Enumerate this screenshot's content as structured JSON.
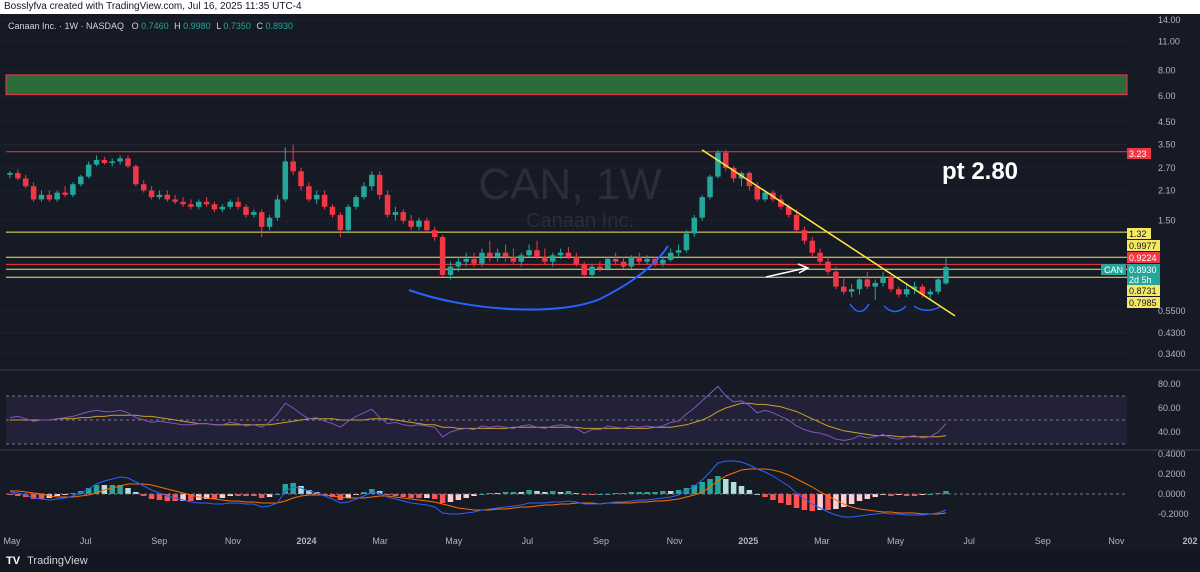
{
  "header": {
    "credit": "Bosslyfva created with TradingView.com, Jul 16, 2025 11:35 UTC-4"
  },
  "symbol_line": {
    "name": "Canaan Inc. · 1W · NASDAQ",
    "o_label": "O",
    "o": "0.7460",
    "h_label": "H",
    "h": "0.9980",
    "l_label": "L",
    "l": "0.7350",
    "c_label": "C",
    "c": "0.8930"
  },
  "watermark": {
    "ticker": "CAN, 1W",
    "company": "Canaan Inc."
  },
  "annotation": "pt 2.80",
  "price_badges": {
    "r323": "3.23",
    "r132": "1.32",
    "r09977": "0.9977",
    "r09224": "0.9224",
    "can_label": "CAN",
    "can_price": "0.8930",
    "can_time": "2d 5h",
    "r08731": "0.8731",
    "r07985": "0.7985"
  },
  "colors": {
    "background": "#161a25",
    "up": "#26a69a",
    "down": "#f23645",
    "zone_fill": "#2e6b3a",
    "zone_border": "#f23645",
    "hline_yellow": "#f5e663",
    "hline_red": "#f23645",
    "trendline": "#ffeb3b",
    "curve": "#2962ff",
    "rsi": "#7e57c2",
    "rsi_ma": "#c9a227",
    "macd": "#2962ff",
    "signal": "#ff6d00"
  },
  "footer": {
    "logo_text": "TV",
    "brand": "TradingView"
  },
  "chart_data": {
    "type": "candlestick",
    "interval": "1W",
    "price_scale": "log",
    "price_axis_ticks": [
      "14.00",
      "11.00",
      "8.00",
      "6.00",
      "4.50",
      "3.50",
      "2.70",
      "2.10",
      "1.50",
      "0.5500",
      "0.4300",
      "0.3400"
    ],
    "time_axis_labels": [
      "May",
      "Jul",
      "Sep",
      "Nov",
      "2024",
      "Mar",
      "May",
      "Jul",
      "Sep",
      "Nov",
      "2025",
      "Mar",
      "May",
      "Jul",
      "Sep",
      "Nov",
      "202"
    ],
    "levels": [
      {
        "price": 3.23,
        "color": "red"
      },
      {
        "price": 1.32,
        "color": "yellow"
      },
      {
        "price": 0.9977,
        "color": "yellow"
      },
      {
        "price": 0.9224,
        "color": "red"
      },
      {
        "price": 0.8731,
        "color": "yellow"
      },
      {
        "price": 0.7985,
        "color": "yellow"
      }
    ],
    "zone": {
      "low": 6.1,
      "high": 7.6
    },
    "trendline": {
      "from_price": 3.3,
      "to_price": 0.52
    },
    "candles_ohlc": [
      [
        2.5,
        2.6,
        2.4,
        2.55
      ],
      [
        2.55,
        2.65,
        2.35,
        2.4
      ],
      [
        2.4,
        2.5,
        2.15,
        2.2
      ],
      [
        2.2,
        2.3,
        1.85,
        1.9
      ],
      [
        1.9,
        2.1,
        1.85,
        2.0
      ],
      [
        2.0,
        2.1,
        1.85,
        1.9
      ],
      [
        1.9,
        2.1,
        1.85,
        2.05
      ],
      [
        2.05,
        2.2,
        1.95,
        2.0
      ],
      [
        2.0,
        2.3,
        1.95,
        2.25
      ],
      [
        2.25,
        2.5,
        2.2,
        2.45
      ],
      [
        2.45,
        2.9,
        2.4,
        2.8
      ],
      [
        2.8,
        3.1,
        2.75,
        2.95
      ],
      [
        2.95,
        3.05,
        2.8,
        2.85
      ],
      [
        2.85,
        3.0,
        2.75,
        2.9
      ],
      [
        2.9,
        3.1,
        2.8,
        3.0
      ],
      [
        3.0,
        3.1,
        2.7,
        2.75
      ],
      [
        2.75,
        2.8,
        2.2,
        2.25
      ],
      [
        2.25,
        2.35,
        2.05,
        2.1
      ],
      [
        2.1,
        2.2,
        1.9,
        1.95
      ],
      [
        1.95,
        2.1,
        1.9,
        2.0
      ],
      [
        2.0,
        2.1,
        1.85,
        1.9
      ],
      [
        1.9,
        2.0,
        1.8,
        1.85
      ],
      [
        1.85,
        1.95,
        1.75,
        1.8
      ],
      [
        1.8,
        1.9,
        1.7,
        1.75
      ],
      [
        1.75,
        1.9,
        1.7,
        1.85
      ],
      [
        1.85,
        1.95,
        1.75,
        1.8
      ],
      [
        1.8,
        1.85,
        1.65,
        1.7
      ],
      [
        1.7,
        1.8,
        1.65,
        1.75
      ],
      [
        1.75,
        1.9,
        1.7,
        1.85
      ],
      [
        1.85,
        1.95,
        1.7,
        1.75
      ],
      [
        1.75,
        1.8,
        1.55,
        1.6
      ],
      [
        1.6,
        1.7,
        1.55,
        1.65
      ],
      [
        1.65,
        1.7,
        1.25,
        1.4
      ],
      [
        1.4,
        1.6,
        1.35,
        1.55
      ],
      [
        1.55,
        2.0,
        1.5,
        1.9
      ],
      [
        1.9,
        3.4,
        1.85,
        2.9
      ],
      [
        2.9,
        3.5,
        2.5,
        2.6
      ],
      [
        2.6,
        2.7,
        2.1,
        2.2
      ],
      [
        2.2,
        2.3,
        1.85,
        1.9
      ],
      [
        1.9,
        2.1,
        1.8,
        2.0
      ],
      [
        2.0,
        2.1,
        1.7,
        1.75
      ],
      [
        1.75,
        1.8,
        1.55,
        1.6
      ],
      [
        1.6,
        1.65,
        1.25,
        1.35
      ],
      [
        1.35,
        1.8,
        1.3,
        1.75
      ],
      [
        1.75,
        2.0,
        1.7,
        1.95
      ],
      [
        1.95,
        2.3,
        1.9,
        2.2
      ],
      [
        2.2,
        2.6,
        2.1,
        2.5
      ],
      [
        2.5,
        2.6,
        1.9,
        2.0
      ],
      [
        2.0,
        2.1,
        1.55,
        1.6
      ],
      [
        1.6,
        1.75,
        1.5,
        1.65
      ],
      [
        1.65,
        1.7,
        1.45,
        1.5
      ],
      [
        1.5,
        1.6,
        1.35,
        1.4
      ],
      [
        1.4,
        1.55,
        1.35,
        1.5
      ],
      [
        1.5,
        1.55,
        1.3,
        1.35
      ],
      [
        1.35,
        1.4,
        1.2,
        1.25
      ],
      [
        1.25,
        1.28,
        0.8,
        0.82
      ],
      [
        0.82,
        0.95,
        0.78,
        0.9
      ],
      [
        0.9,
        1.0,
        0.85,
        0.95
      ],
      [
        0.95,
        1.05,
        0.9,
        0.98
      ],
      [
        0.98,
        1.05,
        0.9,
        0.93
      ],
      [
        0.93,
        1.1,
        0.9,
        1.05
      ],
      [
        1.05,
        1.2,
        0.95,
        1.0
      ],
      [
        1.0,
        1.1,
        0.95,
        1.05
      ],
      [
        1.05,
        1.15,
        0.95,
        1.0
      ],
      [
        1.0,
        1.1,
        0.92,
        0.95
      ],
      [
        0.95,
        1.05,
        0.9,
        1.02
      ],
      [
        1.02,
        1.15,
        1.0,
        1.08
      ],
      [
        1.08,
        1.2,
        0.98,
        1.0
      ],
      [
        1.0,
        1.1,
        0.92,
        0.95
      ],
      [
        0.95,
        1.05,
        0.9,
        1.02
      ],
      [
        1.02,
        1.1,
        0.98,
        1.05
      ],
      [
        1.05,
        1.12,
        0.98,
        1.0
      ],
      [
        1.0,
        1.05,
        0.9,
        0.92
      ],
      [
        0.92,
        0.95,
        0.8,
        0.82
      ],
      [
        0.82,
        0.92,
        0.8,
        0.9
      ],
      [
        0.9,
        0.95,
        0.85,
        0.88
      ],
      [
        0.88,
        1.0,
        0.86,
        0.98
      ],
      [
        0.98,
        1.05,
        0.92,
        0.95
      ],
      [
        0.95,
        1.0,
        0.88,
        0.9
      ],
      [
        0.9,
        1.02,
        0.88,
        1.0
      ],
      [
        1.0,
        1.05,
        0.92,
        0.95
      ],
      [
        0.95,
        1.02,
        0.92,
        0.98
      ],
      [
        0.98,
        1.0,
        0.9,
        0.93
      ],
      [
        0.93,
        1.0,
        0.9,
        0.97
      ],
      [
        0.97,
        1.1,
        0.95,
        1.05
      ],
      [
        1.05,
        1.15,
        1.0,
        1.08
      ],
      [
        1.08,
        1.35,
        1.05,
        1.3
      ],
      [
        1.3,
        1.6,
        1.25,
        1.55
      ],
      [
        1.55,
        2.0,
        1.5,
        1.95
      ],
      [
        1.95,
        2.5,
        1.9,
        2.45
      ],
      [
        2.45,
        3.3,
        2.4,
        3.2
      ],
      [
        3.2,
        3.3,
        2.6,
        2.7
      ],
      [
        2.7,
        2.75,
        2.3,
        2.4
      ],
      [
        2.4,
        2.6,
        2.2,
        2.55
      ],
      [
        2.55,
        2.6,
        2.1,
        2.2
      ],
      [
        2.2,
        2.3,
        1.85,
        1.9
      ],
      [
        1.9,
        2.1,
        1.85,
        2.05
      ],
      [
        2.05,
        2.1,
        1.85,
        1.9
      ],
      [
        1.9,
        2.0,
        1.7,
        1.75
      ],
      [
        1.75,
        1.8,
        1.55,
        1.6
      ],
      [
        1.6,
        1.7,
        1.3,
        1.35
      ],
      [
        1.35,
        1.4,
        1.15,
        1.2
      ],
      [
        1.2,
        1.25,
        1.0,
        1.05
      ],
      [
        1.05,
        1.1,
        0.92,
        0.95
      ],
      [
        0.95,
        1.0,
        0.82,
        0.85
      ],
      [
        0.85,
        0.9,
        0.7,
        0.72
      ],
      [
        0.72,
        0.8,
        0.66,
        0.68
      ],
      [
        0.68,
        0.74,
        0.64,
        0.7
      ],
      [
        0.7,
        0.8,
        0.66,
        0.78
      ],
      [
        0.78,
        0.85,
        0.7,
        0.72
      ],
      [
        0.72,
        0.78,
        0.62,
        0.75
      ],
      [
        0.75,
        0.85,
        0.72,
        0.8
      ],
      [
        0.8,
        0.82,
        0.68,
        0.7
      ],
      [
        0.7,
        0.72,
        0.64,
        0.66
      ],
      [
        0.66,
        0.75,
        0.64,
        0.7
      ],
      [
        0.7,
        0.76,
        0.66,
        0.72
      ],
      [
        0.72,
        0.74,
        0.64,
        0.66
      ],
      [
        0.66,
        0.7,
        0.63,
        0.68
      ],
      [
        0.68,
        0.8,
        0.66,
        0.78
      ],
      [
        0.746,
        0.998,
        0.735,
        0.893
      ]
    ],
    "rsi_axis_ticks": [
      "80.00",
      "60.00",
      "40.00"
    ],
    "rsi_values": [
      52,
      53,
      51,
      49,
      50,
      50,
      51,
      52,
      53,
      55,
      57,
      58,
      57,
      57,
      58,
      56,
      52,
      50,
      48,
      49,
      48,
      47,
      46,
      46,
      47,
      47,
      46,
      46,
      48,
      47,
      45,
      46,
      44,
      48,
      55,
      64,
      60,
      55,
      51,
      52,
      49,
      47,
      44,
      49,
      53,
      56,
      59,
      52,
      47,
      48,
      46,
      45,
      46,
      45,
      44,
      36,
      40,
      42,
      43,
      42,
      45,
      44,
      45,
      44,
      43,
      45,
      46,
      44,
      43,
      45,
      46,
      45,
      43,
      39,
      42,
      42,
      45,
      44,
      43,
      45,
      44,
      45,
      44,
      45,
      48,
      49,
      55,
      60,
      66,
      72,
      78,
      70,
      65,
      66,
      62,
      56,
      58,
      56,
      53,
      50,
      45,
      42,
      40,
      39,
      37,
      34,
      33,
      34,
      37,
      35,
      36,
      38,
      35,
      34,
      36,
      37,
      35,
      36,
      40,
      47
    ],
    "rsi_ma_values": [
      50,
      50,
      50,
      50,
      50,
      50,
      51,
      51,
      51,
      52,
      52,
      53,
      53,
      54,
      54,
      54,
      54,
      53,
      53,
      52,
      51,
      50,
      49,
      48,
      47,
      47,
      46,
      46,
      46,
      46,
      46,
      46,
      46,
      46,
      47,
      48,
      49,
      50,
      51,
      51,
      51,
      51,
      50,
      50,
      50,
      50,
      51,
      51,
      51,
      50,
      49,
      48,
      47,
      46,
      46,
      44,
      44,
      43,
      43,
      43,
      43,
      43,
      43,
      43,
      44,
      44,
      44,
      44,
      44,
      44,
      44,
      44,
      44,
      43,
      43,
      43,
      43,
      43,
      43,
      43,
      43,
      43,
      44,
      44,
      44,
      45,
      46,
      48,
      50,
      53,
      57,
      60,
      62,
      64,
      64,
      63,
      63,
      62,
      61,
      59,
      57,
      54,
      51,
      48,
      45,
      43,
      41,
      40,
      39,
      38,
      37,
      37,
      37,
      36,
      36,
      36,
      36,
      36,
      36,
      37
    ],
    "macd_axis_ticks": [
      "0.4000",
      "0.2000",
      "0.0000",
      "-0.2000"
    ],
    "macd_values": [
      0.02,
      0.01,
      -0.01,
      -0.04,
      -0.05,
      -0.06,
      -0.05,
      -0.04,
      -0.02,
      0.01,
      0.05,
      0.1,
      0.13,
      0.15,
      0.17,
      0.16,
      0.12,
      0.08,
      0.04,
      0.01,
      -0.02,
      -0.04,
      -0.06,
      -0.08,
      -0.09,
      -0.09,
      -0.1,
      -0.1,
      -0.09,
      -0.09,
      -0.1,
      -0.1,
      -0.13,
      -0.12,
      -0.09,
      0.03,
      0.07,
      0.06,
      0.03,
      0.01,
      -0.02,
      -0.05,
      -0.09,
      -0.08,
      -0.05,
      -0.02,
      0.02,
      0.01,
      -0.03,
      -0.05,
      -0.07,
      -0.09,
      -0.1,
      -0.11,
      -0.13,
      -0.19,
      -0.2,
      -0.2,
      -0.19,
      -0.18,
      -0.16,
      -0.15,
      -0.14,
      -0.13,
      -0.12,
      -0.11,
      -0.09,
      -0.09,
      -0.09,
      -0.08,
      -0.08,
      -0.07,
      -0.08,
      -0.1,
      -0.1,
      -0.1,
      -0.09,
      -0.08,
      -0.08,
      -0.07,
      -0.06,
      -0.06,
      -0.05,
      -0.04,
      -0.03,
      -0.01,
      0.03,
      0.08,
      0.14,
      0.22,
      0.31,
      0.33,
      0.33,
      0.32,
      0.29,
      0.25,
      0.22,
      0.18,
      0.13,
      0.08,
      0.01,
      -0.05,
      -0.1,
      -0.14,
      -0.18,
      -0.21,
      -0.23,
      -0.23,
      -0.22,
      -0.21,
      -0.2,
      -0.19,
      -0.2,
      -0.2,
      -0.21,
      -0.21,
      -0.21,
      -0.2,
      -0.19,
      -0.16
    ],
    "signal_values": [
      0.03,
      0.03,
      0.02,
      0.01,
      0.0,
      -0.02,
      -0.03,
      -0.03,
      -0.03,
      -0.02,
      -0.01,
      0.01,
      0.04,
      0.06,
      0.08,
      0.1,
      0.1,
      0.1,
      0.09,
      0.07,
      0.05,
      0.03,
      0.01,
      -0.01,
      -0.03,
      -0.04,
      -0.05,
      -0.06,
      -0.07,
      -0.07,
      -0.08,
      -0.08,
      -0.09,
      -0.09,
      -0.09,
      -0.07,
      -0.04,
      -0.02,
      -0.01,
      -0.01,
      -0.01,
      -0.02,
      -0.03,
      -0.04,
      -0.04,
      -0.04,
      -0.03,
      -0.02,
      -0.02,
      -0.03,
      -0.04,
      -0.05,
      -0.06,
      -0.07,
      -0.08,
      -0.1,
      -0.12,
      -0.14,
      -0.15,
      -0.16,
      -0.16,
      -0.16,
      -0.15,
      -0.15,
      -0.14,
      -0.13,
      -0.13,
      -0.12,
      -0.11,
      -0.11,
      -0.1,
      -0.1,
      -0.09,
      -0.09,
      -0.09,
      -0.1,
      -0.09,
      -0.09,
      -0.09,
      -0.09,
      -0.08,
      -0.08,
      -0.07,
      -0.07,
      -0.06,
      -0.05,
      -0.03,
      -0.01,
      0.02,
      0.07,
      0.13,
      0.18,
      0.21,
      0.24,
      0.25,
      0.25,
      0.25,
      0.24,
      0.22,
      0.19,
      0.15,
      0.11,
      0.07,
      0.02,
      -0.02,
      -0.06,
      -0.1,
      -0.13,
      -0.15,
      -0.16,
      -0.17,
      -0.18,
      -0.18,
      -0.19,
      -0.19,
      -0.19,
      -0.2,
      -0.2,
      -0.2,
      -0.19
    ]
  }
}
